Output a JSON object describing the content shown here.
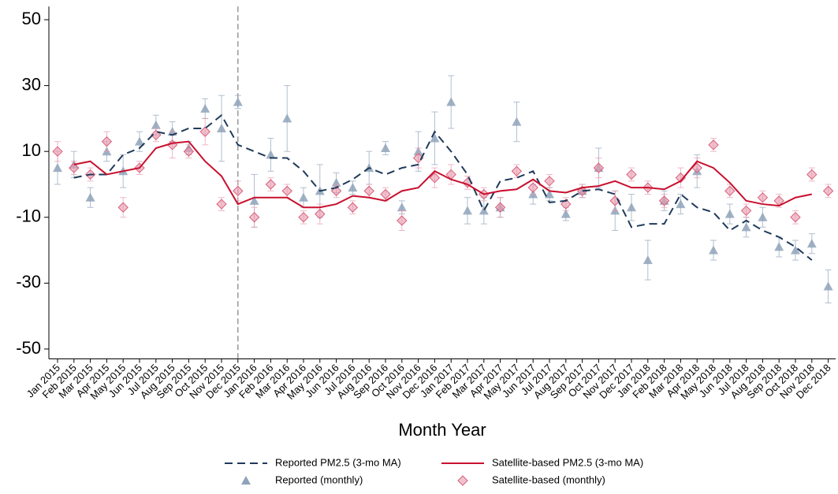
{
  "chart_data": {
    "type": "line",
    "x_label": "Month Year",
    "categories": [
      "Jan 2015",
      "Feb 2015",
      "Mar 2015",
      "Apr 2015",
      "May 2015",
      "Jun 2015",
      "Jul 2015",
      "Aug 2015",
      "Sep 2015",
      "Oct 2015",
      "Nov 2015",
      "Dec 2015",
      "Jan 2016",
      "Feb 2016",
      "Mar 2016",
      "Apr 2016",
      "May 2016",
      "Jun 2016",
      "Jul 2016",
      "Aug 2016",
      "Sep 2016",
      "Oct 2016",
      "Nov 2016",
      "Dec 2016",
      "Jan 2017",
      "Feb 2017",
      "Mar 2017",
      "Apr 2017",
      "May 2017",
      "Jun 2017",
      "Jul 2017",
      "Aug 2017",
      "Sep 2017",
      "Oct 2017",
      "Nov 2017",
      "Dec 2017",
      "Jan 2018",
      "Feb 2018",
      "Mar 2018",
      "Apr 2018",
      "May 2018",
      "Jun 2018",
      "Jul 2018",
      "Aug 2018",
      "Sep 2018",
      "Oct 2018",
      "Nov 2018",
      "Dec 2018"
    ],
    "vline": "Dec 2015",
    "ylim": [
      -53,
      54
    ],
    "yticks": [
      -50,
      -30,
      -10,
      10,
      30,
      50
    ],
    "series": [
      {
        "name": "Reported PM2.5 (3-mo MA)",
        "color": "#1f3a5a",
        "dash": true,
        "values": [
          null,
          2,
          3,
          3,
          9,
          11,
          16,
          15,
          17,
          17,
          21,
          12,
          10,
          8,
          8,
          4,
          -2,
          -1,
          1.5,
          5,
          3,
          5,
          6,
          16,
          10,
          3,
          -8,
          1,
          2,
          4,
          -5.5,
          -5,
          -2,
          -1.5,
          -3,
          -13,
          -12,
          -12,
          -3,
          -7,
          -8.5,
          -14,
          -11,
          -14,
          -16,
          -19,
          -23,
          null
        ]
      },
      {
        "name": "Satellite-based PM2.5 (3-mo MA)",
        "color": "#c8102e",
        "dash": false,
        "values": [
          null,
          6,
          7,
          3,
          4,
          5,
          11,
          12.5,
          13,
          7,
          2.5,
          -6,
          -4,
          -4,
          -4,
          -7,
          -7,
          -6,
          -3.5,
          -4,
          -5,
          -2,
          -1,
          4,
          1.5,
          0,
          -3,
          -2,
          -1.5,
          1.5,
          -2,
          -2.5,
          -1,
          -0.5,
          1,
          -1,
          -1,
          -1.5,
          1,
          7,
          5,
          0.5,
          -5,
          -6,
          -6.5,
          -4,
          -3,
          null
        ]
      },
      {
        "name": "Reported (monthly)",
        "color": "#8fa3ba",
        "marker": "triangle",
        "values": [
          5,
          6,
          -4,
          10,
          4,
          13,
          18,
          16,
          11,
          23,
          17,
          25,
          -5,
          9,
          20,
          -4,
          -2,
          0.5,
          -1,
          5,
          11,
          -7,
          10,
          14,
          25,
          -8,
          -8,
          -7,
          19,
          -3,
          -3,
          -9,
          -2,
          5,
          -8,
          -7,
          -23,
          -5,
          -6,
          4,
          -20,
          -9,
          -13,
          -10,
          -19,
          -20,
          -18,
          -31
        ],
        "errors": [
          5,
          4,
          3,
          3,
          5,
          3,
          3,
          3,
          2,
          3,
          10,
          2,
          8,
          5,
          10,
          3,
          8,
          3,
          2,
          5,
          2,
          2,
          6,
          8,
          8,
          4,
          4,
          3,
          6,
          3,
          2,
          2,
          2,
          6,
          6,
          4,
          6,
          3,
          3,
          5,
          3,
          3,
          3,
          3,
          3,
          3,
          3,
          5
        ]
      },
      {
        "name": "Satellite-based (monthly)",
        "color": "#e79aae",
        "marker": "diamond",
        "values": [
          10,
          5,
          3,
          13,
          -7,
          5,
          15,
          12,
          10,
          16,
          -6,
          -2,
          -10,
          0,
          -2,
          -10,
          -9,
          -2,
          -7,
          -2,
          -3,
          -11,
          8,
          2,
          3,
          0.5,
          -3,
          -7,
          4,
          -1,
          1,
          -6,
          -2,
          5,
          -5,
          3,
          -1,
          -5,
          2,
          5,
          12,
          -2,
          -8,
          -4,
          -5,
          -10,
          3,
          -2
        ],
        "errors": [
          3,
          2,
          2,
          3,
          3,
          2,
          2,
          4,
          2,
          4,
          2,
          3,
          3,
          2,
          2,
          2,
          3,
          2,
          2,
          2,
          2,
          3,
          3,
          3,
          3,
          2,
          2,
          3,
          2,
          2,
          2,
          2,
          2,
          3,
          3,
          2,
          2,
          2,
          3,
          3,
          2,
          2,
          2,
          2,
          2,
          2,
          2,
          2
        ]
      }
    ]
  }
}
